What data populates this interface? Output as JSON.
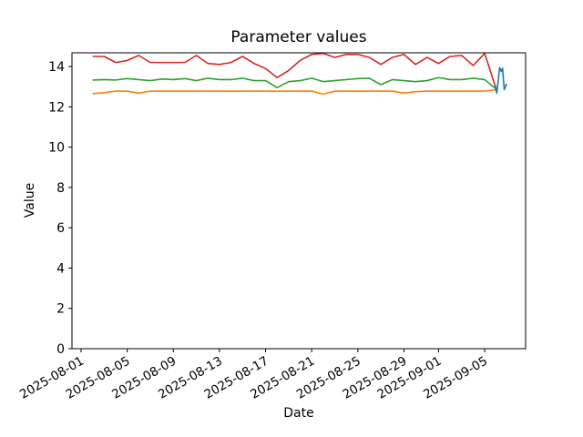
{
  "figure": {
    "background_color": "#ffffff",
    "text_color": "#000000"
  },
  "chart_data": {
    "type": "line",
    "title": "Parameter values",
    "xlabel": "Date",
    "ylabel": "Value",
    "grid": false,
    "legend": false,
    "x_axis": {
      "origin_date": "2025-08-01",
      "tick_labels": [
        "2025-08-01",
        "2025-08-05",
        "2025-08-09",
        "2025-08-13",
        "2025-08-17",
        "2025-08-21",
        "2025-08-25",
        "2025-08-29",
        "2025-09-01",
        "2025-09-05"
      ],
      "tick_day_offsets": [
        0,
        4,
        8,
        12,
        16,
        20,
        24,
        28,
        31,
        35
      ],
      "lim_day_offsets": [
        -0.79,
        38.55
      ],
      "tick_label_rotation_deg": 30
    },
    "y_axis": {
      "ticks": [
        0,
        2,
        4,
        6,
        8,
        10,
        12,
        14
      ],
      "lim": [
        0,
        14.68
      ]
    },
    "series": [
      {
        "name": "green",
        "color": "#2ca02c",
        "start_date": "2025-08-02",
        "x_day_offsets": [
          1,
          2,
          3,
          4,
          5,
          6,
          7,
          8,
          9,
          10,
          11,
          12,
          13,
          14,
          15,
          16,
          17,
          18,
          19,
          20,
          21,
          22,
          23,
          24,
          25,
          26,
          27,
          28,
          29,
          30,
          31,
          32,
          33,
          34,
          35,
          36
        ],
        "values": [
          13.33,
          13.35,
          13.33,
          13.4,
          13.35,
          13.3,
          13.38,
          13.35,
          13.4,
          13.3,
          13.42,
          13.35,
          13.35,
          13.42,
          13.3,
          13.3,
          12.95,
          13.25,
          13.3,
          13.42,
          13.25,
          13.3,
          13.35,
          13.4,
          13.42,
          13.1,
          13.35,
          13.3,
          13.25,
          13.3,
          13.45,
          13.35,
          13.35,
          13.42,
          13.35,
          12.88
        ]
      },
      {
        "name": "orange",
        "color": "#ff7f0e",
        "start_date": "2025-08-02",
        "x_day_offsets": [
          1,
          2,
          3,
          4,
          5,
          6,
          7,
          8,
          9,
          10,
          11,
          12,
          13,
          14,
          15,
          16,
          17,
          18,
          19,
          20,
          21,
          22,
          23,
          24,
          25,
          26,
          27,
          28,
          29,
          30,
          31,
          32,
          33,
          34,
          35,
          36
        ],
        "values": [
          12.65,
          12.7,
          12.78,
          12.78,
          12.68,
          12.78,
          12.78,
          12.78,
          12.78,
          12.78,
          12.78,
          12.78,
          12.78,
          12.78,
          12.78,
          12.78,
          12.78,
          12.78,
          12.78,
          12.78,
          12.63,
          12.78,
          12.78,
          12.78,
          12.78,
          12.78,
          12.78,
          12.68,
          12.75,
          12.78,
          12.78,
          12.78,
          12.78,
          12.78,
          12.78,
          12.85
        ]
      },
      {
        "name": "red",
        "color": "#d62728",
        "start_date": "2025-08-02",
        "x_day_offsets": [
          1,
          2,
          3,
          4,
          5,
          6,
          7,
          8,
          9,
          10,
          11,
          12,
          13,
          14,
          15,
          16,
          17,
          18,
          19,
          20,
          21,
          22,
          23,
          24,
          25,
          26,
          27,
          28,
          29,
          30,
          31,
          32,
          33,
          34,
          35,
          36
        ],
        "values": [
          14.5,
          14.5,
          14.2,
          14.3,
          14.55,
          14.2,
          14.2,
          14.2,
          14.2,
          14.55,
          14.15,
          14.1,
          14.2,
          14.5,
          14.15,
          13.9,
          13.45,
          13.8,
          14.3,
          14.6,
          14.65,
          14.45,
          14.6,
          14.6,
          14.45,
          14.1,
          14.45,
          14.6,
          14.1,
          14.45,
          14.15,
          14.5,
          14.55,
          14.05,
          14.65,
          12.88
        ]
      },
      {
        "name": "blue",
        "color": "#1f77b4",
        "start_date": "2025-09-05",
        "x_day_offsets": [
          35.9,
          36.05,
          36.3,
          36.45,
          36.55,
          36.7,
          36.9
        ],
        "values": [
          13.05,
          12.68,
          13.95,
          13.75,
          13.92,
          12.85,
          13.15
        ]
      }
    ]
  }
}
